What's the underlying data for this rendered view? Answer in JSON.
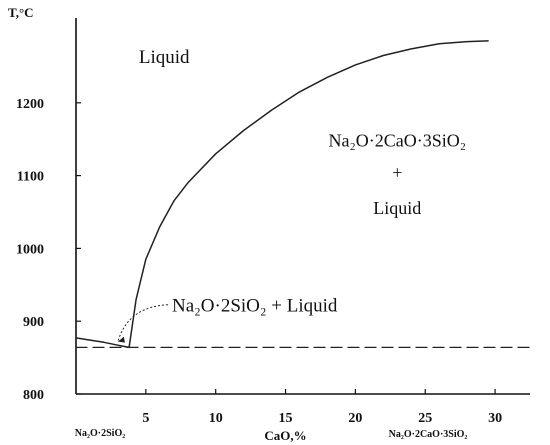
{
  "chart_data": {
    "type": "line",
    "title": "",
    "ylabel": "T,°C",
    "xlabel": "CaO,%",
    "xlim": [
      0,
      32.5
    ],
    "ylim": [
      800,
      1300
    ],
    "x_ticks": [
      5,
      10,
      15,
      20,
      25,
      30
    ],
    "y_ticks": [
      800,
      900,
      1000,
      1100,
      1200
    ],
    "x_end_labels": {
      "left": "Na₂O·2SiO₂",
      "right": "Na₂O·2CaO·3SiO₂"
    },
    "series": [
      {
        "x": [
          0,
          1,
          2,
          3,
          3.8
        ],
        "y": [
          877,
          874,
          871,
          867,
          864
        ]
      },
      {
        "x": [
          3.8,
          4.3,
          5,
          6,
          7,
          8,
          10,
          12,
          14,
          16,
          18,
          20,
          22,
          24,
          26,
          28,
          29.5
        ],
        "y": [
          864,
          930,
          985,
          1030,
          1065,
          1090,
          1130,
          1162,
          1190,
          1215,
          1235,
          1252,
          1265,
          1274,
          1281,
          1284,
          1285
        ]
      },
      {
        "x": [
          0,
          32.5
        ],
        "y": [
          864,
          864
        ],
        "style": "dashed"
      }
    ],
    "annotations": [
      {
        "text": "Liquid",
        "x": 4.5,
        "y": 1255
      },
      {
        "text": "Na₂O·2CaO·3SiO₂",
        "x": 23,
        "y": 1140
      },
      {
        "text": "+",
        "x": 23,
        "y": 1096
      },
      {
        "text": "Liquid",
        "x": 23,
        "y": 1047
      },
      {
        "text": "Na₂O·2SiO₂ + Liquid",
        "x": 13.5,
        "y": 913,
        "arrow_to": [
          3,
          872
        ]
      }
    ],
    "grid": false,
    "legend": "none"
  }
}
